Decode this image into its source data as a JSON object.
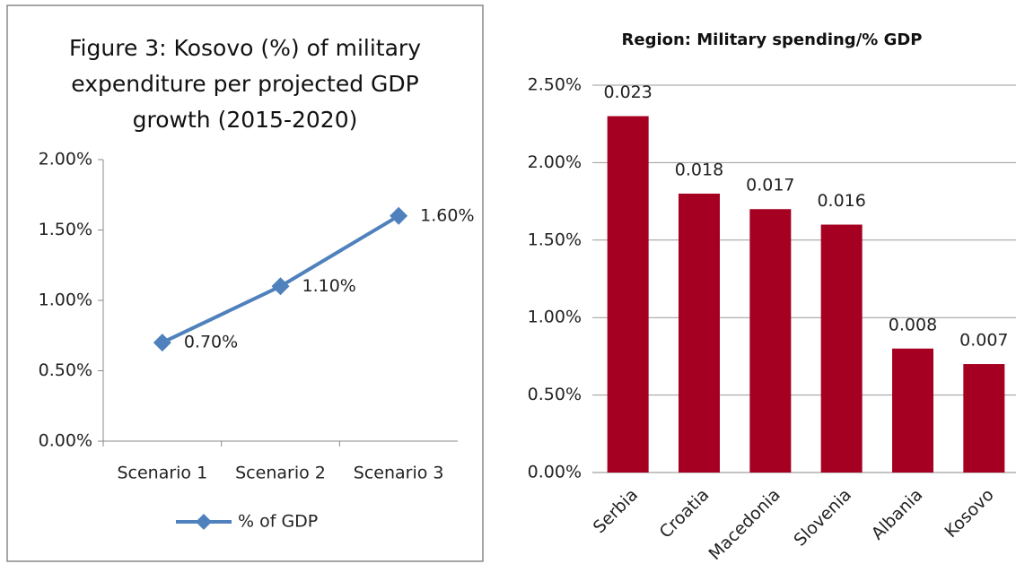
{
  "chart_data": [
    {
      "type": "line",
      "title": "Figure 3: Kosovo (%) of military expenditure per projected GDP growth (2015-2020)",
      "categories": [
        "Scenario 1",
        "Scenario 2",
        "Scenario 3"
      ],
      "series": [
        {
          "name": "% of GDP",
          "color": "#4f81bd",
          "values": [
            0.7,
            1.1,
            1.6
          ],
          "value_labels": [
            "0.70%",
            "1.10%",
            "1.60%"
          ]
        }
      ],
      "ylim": [
        0,
        2
      ],
      "yticks": [
        {
          "value": 0,
          "label": "0.00%"
        },
        {
          "value": 0.5,
          "label": "0.50%"
        },
        {
          "value": 1,
          "label": "1.00%"
        },
        {
          "value": 1.5,
          "label": "1.50%"
        },
        {
          "value": 2,
          "label": "2.00%"
        }
      ],
      "grid": false,
      "legend": "bottom"
    },
    {
      "type": "bar",
      "title": "Region: Military spending/% GDP",
      "categories": [
        "Serbia",
        "Croatia",
        "Macedonia",
        "Slovenia",
        "Albania",
        "Kosovo"
      ],
      "values": [
        2.3,
        1.8,
        1.7,
        1.6,
        0.8,
        0.7
      ],
      "value_labels": [
        "0.023",
        "0.018",
        "0.017",
        "0.016",
        "0.008",
        "0.007"
      ],
      "color": "#a50021",
      "ylim": [
        0,
        2.5
      ],
      "yticks": [
        {
          "value": 0,
          "label": "0.00%"
        },
        {
          "value": 0.5,
          "label": "0.50%"
        },
        {
          "value": 1,
          "label": "1.00%"
        },
        {
          "value": 1.5,
          "label": "1.50%"
        },
        {
          "value": 2,
          "label": "2.00%"
        },
        {
          "value": 2.5,
          "label": "2.50%"
        }
      ],
      "grid": true
    }
  ]
}
